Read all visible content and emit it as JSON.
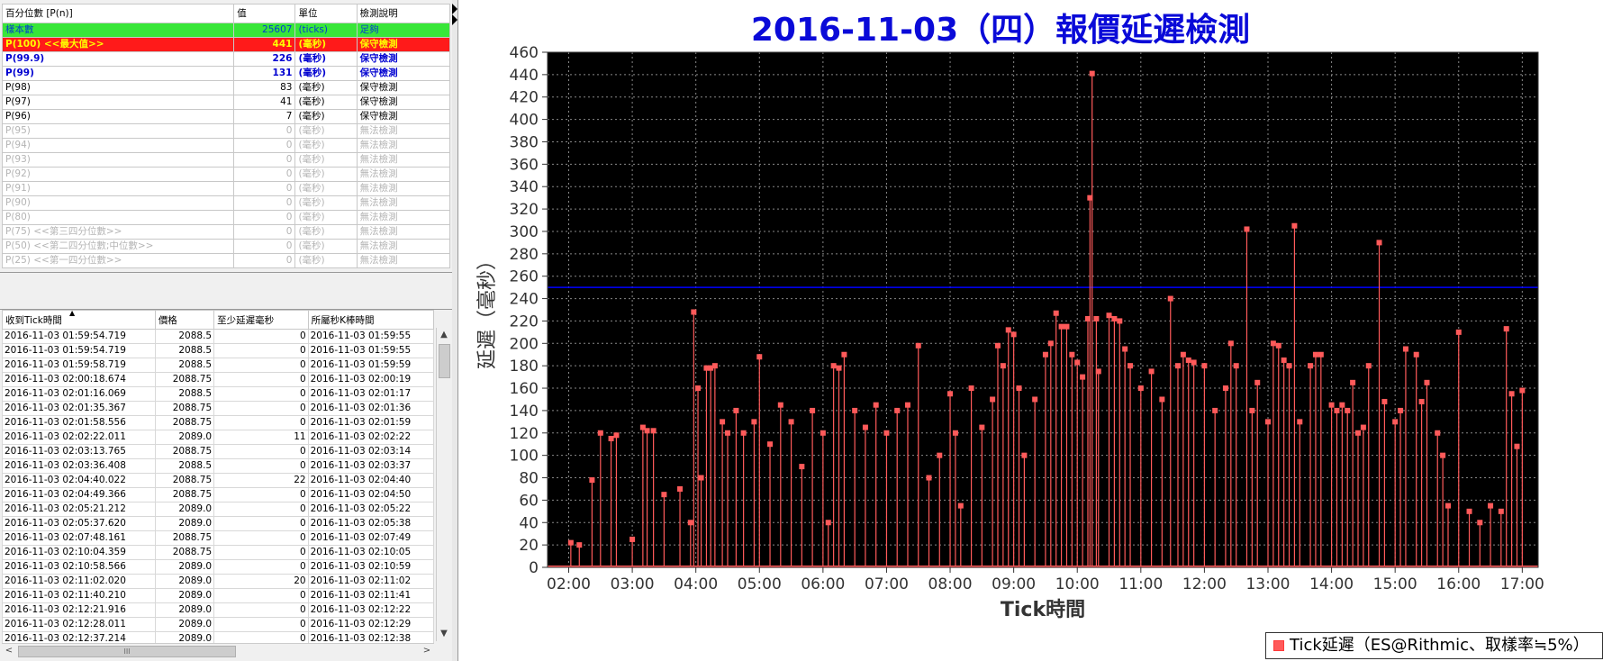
{
  "percentile_table": {
    "headers": [
      "百分位數 [P(n)]",
      "值",
      "單位",
      "檢測說明"
    ],
    "rows": [
      {
        "label": "樣本數",
        "value": "25607",
        "unit": "(ticks)",
        "note": "足夠",
        "style": "green"
      },
      {
        "label": "P(100) <<最大值>>",
        "value": "441",
        "unit": "(毫秒)",
        "note": "保守檢測",
        "style": "red"
      },
      {
        "label": "P(99.9)",
        "value": "226",
        "unit": "(毫秒)",
        "note": "保守檢測",
        "style": "blue"
      },
      {
        "label": "P(99)",
        "value": "131",
        "unit": "(毫秒)",
        "note": "保守檢測",
        "style": "blue"
      },
      {
        "label": "P(98)",
        "value": "83",
        "unit": "(毫秒)",
        "note": "保守檢測",
        "style": "normal"
      },
      {
        "label": "P(97)",
        "value": "41",
        "unit": "(毫秒)",
        "note": "保守檢測",
        "style": "normal"
      },
      {
        "label": "P(96)",
        "value": "7",
        "unit": "(毫秒)",
        "note": "保守檢測",
        "style": "normal"
      },
      {
        "label": "P(95)",
        "value": "0",
        "unit": "(毫秒)",
        "note": "無法檢測",
        "style": "gray"
      },
      {
        "label": "P(94)",
        "value": "0",
        "unit": "(毫秒)",
        "note": "無法檢測",
        "style": "gray"
      },
      {
        "label": "P(93)",
        "value": "0",
        "unit": "(毫秒)",
        "note": "無法檢測",
        "style": "gray"
      },
      {
        "label": "P(92)",
        "value": "0",
        "unit": "(毫秒)",
        "note": "無法檢測",
        "style": "gray"
      },
      {
        "label": "P(91)",
        "value": "0",
        "unit": "(毫秒)",
        "note": "無法檢測",
        "style": "gray"
      },
      {
        "label": "P(90)",
        "value": "0",
        "unit": "(毫秒)",
        "note": "無法檢測",
        "style": "gray"
      },
      {
        "label": "P(80)",
        "value": "0",
        "unit": "(毫秒)",
        "note": "無法檢測",
        "style": "gray"
      },
      {
        "label": "P(75) <<第三四分位數>>",
        "value": "0",
        "unit": "(毫秒)",
        "note": "無法檢測",
        "style": "gray"
      },
      {
        "label": "P(50) <<第二四分位數;中位數>>",
        "value": "0",
        "unit": "(毫秒)",
        "note": "無法檢測",
        "style": "gray"
      },
      {
        "label": "P(25) <<第一四分位數>>",
        "value": "0",
        "unit": "(毫秒)",
        "note": "無法檢測",
        "style": "gray"
      }
    ]
  },
  "tick_table": {
    "headers": [
      "收到Tick時間",
      "價格",
      "至少延遲毫秒",
      "所屬秒K棒時間"
    ],
    "sort_indicator": "▲",
    "rows": [
      [
        "2016-11-03 01:59:54.719",
        "2088.5",
        "0",
        "2016-11-03 01:59:55"
      ],
      [
        "2016-11-03 01:59:54.719",
        "2088.5",
        "0",
        "2016-11-03 01:59:55"
      ],
      [
        "2016-11-03 01:59:58.719",
        "2088.5",
        "0",
        "2016-11-03 01:59:59"
      ],
      [
        "2016-11-03 02:00:18.674",
        "2088.75",
        "0",
        "2016-11-03 02:00:19"
      ],
      [
        "2016-11-03 02:01:16.069",
        "2088.5",
        "0",
        "2016-11-03 02:01:17"
      ],
      [
        "2016-11-03 02:01:35.367",
        "2088.75",
        "0",
        "2016-11-03 02:01:36"
      ],
      [
        "2016-11-03 02:01:58.556",
        "2088.75",
        "0",
        "2016-11-03 02:01:59"
      ],
      [
        "2016-11-03 02:02:22.011",
        "2089.0",
        "11",
        "2016-11-03 02:02:22"
      ],
      [
        "2016-11-03 02:03:13.765",
        "2088.75",
        "0",
        "2016-11-03 02:03:14"
      ],
      [
        "2016-11-03 02:03:36.408",
        "2088.5",
        "0",
        "2016-11-03 02:03:37"
      ],
      [
        "2016-11-03 02:04:40.022",
        "2088.75",
        "22",
        "2016-11-03 02:04:40"
      ],
      [
        "2016-11-03 02:04:49.366",
        "2088.75",
        "0",
        "2016-11-03 02:04:50"
      ],
      [
        "2016-11-03 02:05:21.212",
        "2089.0",
        "0",
        "2016-11-03 02:05:22"
      ],
      [
        "2016-11-03 02:05:37.620",
        "2089.0",
        "0",
        "2016-11-03 02:05:38"
      ],
      [
        "2016-11-03 02:07:48.161",
        "2088.75",
        "0",
        "2016-11-03 02:07:49"
      ],
      [
        "2016-11-03 02:10:04.359",
        "2088.75",
        "0",
        "2016-11-03 02:10:05"
      ],
      [
        "2016-11-03 02:10:58.566",
        "2089.0",
        "0",
        "2016-11-03 02:10:59"
      ],
      [
        "2016-11-03 02:11:02.020",
        "2089.0",
        "20",
        "2016-11-03 02:11:02"
      ],
      [
        "2016-11-03 02:11:40.210",
        "2089.0",
        "0",
        "2016-11-03 02:11:41"
      ],
      [
        "2016-11-03 02:12:21.916",
        "2089.0",
        "0",
        "2016-11-03 02:12:22"
      ],
      [
        "2016-11-03 02:12:28.011",
        "2089.0",
        "0",
        "2016-11-03 02:12:29"
      ],
      [
        "2016-11-03 02:12:37.214",
        "2089.0",
        "0",
        "2016-11-03 02:12:38"
      ]
    ]
  },
  "scrollbar": {
    "up": "▲",
    "down": "▼",
    "left": "<",
    "right": ">",
    "grip": "III"
  },
  "colors": {
    "series": "#ff5a5a",
    "plot_bg": "#000000",
    "threshold": "#0000ff",
    "title": "#0a0ad8"
  },
  "chart_data": {
    "type": "line",
    "title": "2016-11-03（四）報價延遲檢測",
    "xlabel": "Tick時間",
    "ylabel": "延遲（毫秒）",
    "ylim": [
      0,
      460
    ],
    "ytick_step": 20,
    "xlim_hours": [
      1.667,
      17.25
    ],
    "xticks": [
      "02:00",
      "03:00",
      "04:00",
      "05:00",
      "06:00",
      "07:00",
      "08:00",
      "09:00",
      "10:00",
      "11:00",
      "12:00",
      "13:00",
      "14:00",
      "15:00",
      "16:00",
      "17:00"
    ],
    "grid": true,
    "legend_position": "bottom-center",
    "threshold_line": 250,
    "series": [
      {
        "name": "Tick延遲（ES@Rithmic、取樣率≒5%）",
        "peaks": [
          [
            "02:02",
            22
          ],
          [
            "02:10",
            20
          ],
          [
            "02:22",
            78
          ],
          [
            "02:30",
            120
          ],
          [
            "02:40",
            115
          ],
          [
            "02:45",
            118
          ],
          [
            "03:00",
            25
          ],
          [
            "03:10",
            125
          ],
          [
            "03:14",
            122
          ],
          [
            "03:20",
            122
          ],
          [
            "03:30",
            65
          ],
          [
            "03:45",
            70
          ],
          [
            "03:55",
            40
          ],
          [
            "03:58",
            228
          ],
          [
            "04:02",
            160
          ],
          [
            "04:05",
            80
          ],
          [
            "04:10",
            178
          ],
          [
            "04:14",
            178
          ],
          [
            "04:18",
            180
          ],
          [
            "04:25",
            130
          ],
          [
            "04:30",
            120
          ],
          [
            "04:38",
            140
          ],
          [
            "04:45",
            120
          ],
          [
            "04:55",
            130
          ],
          [
            "05:00",
            188
          ],
          [
            "05:10",
            110
          ],
          [
            "05:20",
            145
          ],
          [
            "05:30",
            130
          ],
          [
            "05:40",
            90
          ],
          [
            "05:50",
            140
          ],
          [
            "06:00",
            120
          ],
          [
            "06:05",
            40
          ],
          [
            "06:10",
            180
          ],
          [
            "06:15",
            178
          ],
          [
            "06:20",
            190
          ],
          [
            "06:30",
            140
          ],
          [
            "06:40",
            125
          ],
          [
            "06:50",
            145
          ],
          [
            "07:00",
            120
          ],
          [
            "07:10",
            140
          ],
          [
            "07:20",
            145
          ],
          [
            "07:30",
            198
          ],
          [
            "07:40",
            80
          ],
          [
            "07:50",
            100
          ],
          [
            "08:00",
            155
          ],
          [
            "08:05",
            120
          ],
          [
            "08:10",
            55
          ],
          [
            "08:20",
            160
          ],
          [
            "08:30",
            125
          ],
          [
            "08:40",
            150
          ],
          [
            "08:45",
            198
          ],
          [
            "08:50",
            180
          ],
          [
            "08:55",
            212
          ],
          [
            "09:00",
            208
          ],
          [
            "09:05",
            160
          ],
          [
            "09:10",
            100
          ],
          [
            "09:20",
            150
          ],
          [
            "09:30",
            190
          ],
          [
            "09:35",
            200
          ],
          [
            "09:40",
            227
          ],
          [
            "09:45",
            215
          ],
          [
            "09:50",
            215
          ],
          [
            "09:55",
            190
          ],
          [
            "10:00",
            183
          ],
          [
            "10:05",
            170
          ],
          [
            "10:10",
            222
          ],
          [
            "10:12",
            330
          ],
          [
            "10:14",
            441
          ],
          [
            "10:18",
            222
          ],
          [
            "10:20",
            175
          ],
          [
            "10:30",
            225
          ],
          [
            "10:35",
            222
          ],
          [
            "10:40",
            220
          ],
          [
            "10:45",
            195
          ],
          [
            "10:50",
            180
          ],
          [
            "11:00",
            160
          ],
          [
            "11:10",
            175
          ],
          [
            "11:20",
            150
          ],
          [
            "11:28",
            240
          ],
          [
            "11:35",
            180
          ],
          [
            "11:40",
            190
          ],
          [
            "11:45",
            185
          ],
          [
            "11:50",
            183
          ],
          [
            "12:00",
            180
          ],
          [
            "12:10",
            140
          ],
          [
            "12:20",
            160
          ],
          [
            "12:25",
            200
          ],
          [
            "12:30",
            180
          ],
          [
            "12:40",
            302
          ],
          [
            "12:45",
            140
          ],
          [
            "12:50",
            165
          ],
          [
            "13:00",
            130
          ],
          [
            "13:05",
            200
          ],
          [
            "13:10",
            198
          ],
          [
            "13:15",
            185
          ],
          [
            "13:20",
            180
          ],
          [
            "13:25",
            305
          ],
          [
            "13:30",
            130
          ],
          [
            "13:40",
            180
          ],
          [
            "13:45",
            190
          ],
          [
            "13:50",
            190
          ],
          [
            "14:00",
            145
          ],
          [
            "14:05",
            140
          ],
          [
            "14:10",
            145
          ],
          [
            "14:15",
            140
          ],
          [
            "14:20",
            165
          ],
          [
            "14:25",
            120
          ],
          [
            "14:30",
            125
          ],
          [
            "14:35",
            180
          ],
          [
            "14:45",
            290
          ],
          [
            "14:50",
            148
          ],
          [
            "15:00",
            130
          ],
          [
            "15:05",
            140
          ],
          [
            "15:10",
            195
          ],
          [
            "15:20",
            190
          ],
          [
            "15:25",
            148
          ],
          [
            "15:30",
            165
          ],
          [
            "15:40",
            120
          ],
          [
            "15:45",
            100
          ],
          [
            "15:50",
            55
          ],
          [
            "16:00",
            210
          ],
          [
            "16:10",
            50
          ],
          [
            "16:20",
            40
          ],
          [
            "16:30",
            55
          ],
          [
            "16:40",
            50
          ],
          [
            "16:45",
            213
          ],
          [
            "16:50",
            155
          ],
          [
            "16:55",
            108
          ],
          [
            "17:00",
            158
          ]
        ]
      }
    ]
  }
}
